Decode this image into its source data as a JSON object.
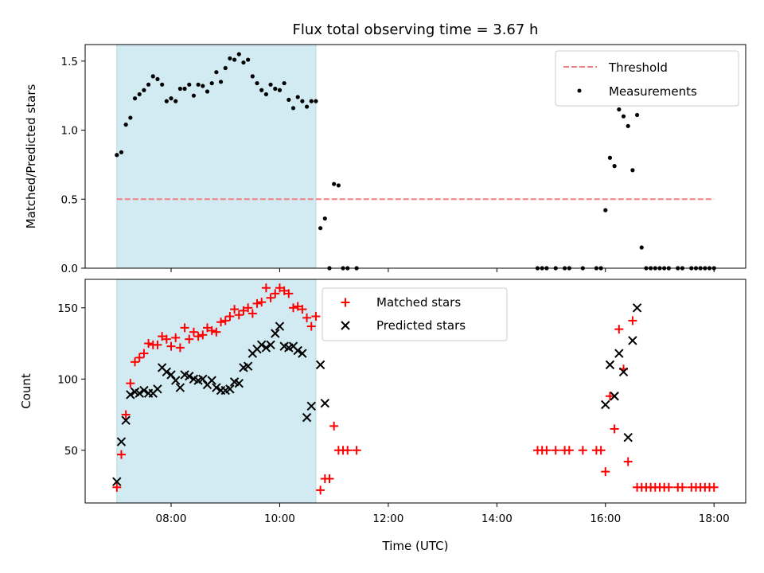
{
  "chart_data": [
    {
      "type": "scatter",
      "title": "Flux total observing time = 3.67 h",
      "xlabel": "",
      "ylabel": "Matched/Predicted stars",
      "ylim": [
        0.0,
        1.62
      ],
      "yticks": [
        "0.0",
        "0.5",
        "1.0",
        "1.5"
      ],
      "ytick_values": [
        0.0,
        0.5,
        1.0,
        1.5
      ],
      "highlight_span": {
        "start": "07:00",
        "end": "10:40",
        "color": "#add8e6"
      },
      "threshold": {
        "name": "Threshold",
        "value": 0.5,
        "x_start": "07:00",
        "x_end": "18:00",
        "color": "#f08080"
      },
      "legend": {
        "position": "top-right",
        "entries": [
          "Threshold",
          "Measurements"
        ]
      },
      "series": [
        {
          "name": "Measurements",
          "color": "#000000",
          "marker": "dot",
          "points": [
            [
              "07:00",
              0.82
            ],
            [
              "07:05",
              0.84
            ],
            [
              "07:10",
              1.04
            ],
            [
              "07:15",
              1.09
            ],
            [
              "07:20",
              1.23
            ],
            [
              "07:25",
              1.26
            ],
            [
              "07:30",
              1.29
            ],
            [
              "07:35",
              1.33
            ],
            [
              "07:40",
              1.39
            ],
            [
              "07:45",
              1.37
            ],
            [
              "07:50",
              1.33
            ],
            [
              "07:55",
              1.21
            ],
            [
              "08:00",
              1.23
            ],
            [
              "08:05",
              1.21
            ],
            [
              "08:10",
              1.3
            ],
            [
              "08:15",
              1.3
            ],
            [
              "08:20",
              1.33
            ],
            [
              "08:25",
              1.25
            ],
            [
              "08:30",
              1.33
            ],
            [
              "08:35",
              1.32
            ],
            [
              "08:40",
              1.28
            ],
            [
              "08:45",
              1.34
            ],
            [
              "08:50",
              1.42
            ],
            [
              "08:55",
              1.35
            ],
            [
              "09:00",
              1.45
            ],
            [
              "09:05",
              1.52
            ],
            [
              "09:10",
              1.51
            ],
            [
              "09:15",
              1.55
            ],
            [
              "09:20",
              1.49
            ],
            [
              "09:25",
              1.51
            ],
            [
              "09:30",
              1.39
            ],
            [
              "09:35",
              1.34
            ],
            [
              "09:40",
              1.29
            ],
            [
              "09:45",
              1.26
            ],
            [
              "09:50",
              1.33
            ],
            [
              "09:55",
              1.3
            ],
            [
              "10:00",
              1.29
            ],
            [
              "10:05",
              1.34
            ],
            [
              "10:10",
              1.22
            ],
            [
              "10:15",
              1.16
            ],
            [
              "10:20",
              1.24
            ],
            [
              "10:25",
              1.21
            ],
            [
              "10:30",
              1.17
            ],
            [
              "10:35",
              1.21
            ],
            [
              "10:40",
              1.21
            ],
            [
              "10:45",
              0.29
            ],
            [
              "10:50",
              0.36
            ],
            [
              "10:55",
              0.0
            ],
            [
              "11:00",
              0.61
            ],
            [
              "11:05",
              0.6
            ],
            [
              "11:10",
              0.0
            ],
            [
              "11:15",
              0.0
            ],
            [
              "11:25",
              0.0
            ],
            [
              "14:45",
              0.0
            ],
            [
              "14:50",
              0.0
            ],
            [
              "14:55",
              0.0
            ],
            [
              "15:05",
              0.0
            ],
            [
              "15:15",
              0.0
            ],
            [
              "15:20",
              0.0
            ],
            [
              "15:35",
              0.0
            ],
            [
              "15:50",
              0.0
            ],
            [
              "15:55",
              0.0
            ],
            [
              "16:00",
              0.42
            ],
            [
              "16:05",
              0.8
            ],
            [
              "16:10",
              0.74
            ],
            [
              "16:15",
              1.15
            ],
            [
              "16:20",
              1.1
            ],
            [
              "16:25",
              1.03
            ],
            [
              "16:30",
              0.71
            ],
            [
              "16:35",
              1.11
            ],
            [
              "16:40",
              0.15
            ],
            [
              "16:45",
              0.0
            ],
            [
              "16:50",
              0.0
            ],
            [
              "16:55",
              0.0
            ],
            [
              "17:00",
              0.0
            ],
            [
              "17:05",
              0.0
            ],
            [
              "17:10",
              0.0
            ],
            [
              "17:20",
              0.0
            ],
            [
              "17:25",
              0.0
            ],
            [
              "17:35",
              0.0
            ],
            [
              "17:40",
              0.0
            ],
            [
              "17:45",
              0.0
            ],
            [
              "17:50",
              0.0
            ],
            [
              "17:55",
              0.0
            ],
            [
              "18:00",
              0.0
            ]
          ]
        }
      ]
    },
    {
      "type": "scatter",
      "title": "",
      "xlabel": "Time (UTC)",
      "ylabel": "Count",
      "ylim": [
        13,
        170
      ],
      "yticks": [
        "50",
        "100",
        "150"
      ],
      "ytick_values": [
        50,
        100,
        150
      ],
      "xlim": [
        "06:25",
        "18:35"
      ],
      "xticks": [
        "08:00",
        "10:00",
        "12:00",
        "14:00",
        "16:00",
        "18:00"
      ],
      "highlight_span": {
        "start": "07:00",
        "end": "10:40",
        "color": "#add8e6"
      },
      "legend": {
        "position": "top-center",
        "entries": [
          "Matched stars",
          "Predicted stars"
        ]
      },
      "series": [
        {
          "name": "Matched stars",
          "color": "#ff0000",
          "marker": "plus",
          "points": [
            [
              "07:00",
              24
            ],
            [
              "07:05",
              47
            ],
            [
              "07:10",
              75
            ],
            [
              "07:15",
              97
            ],
            [
              "07:20",
              112
            ],
            [
              "07:25",
              115
            ],
            [
              "07:30",
              118
            ],
            [
              "07:35",
              125
            ],
            [
              "07:40",
              124
            ],
            [
              "07:45",
              124
            ],
            [
              "07:50",
              130
            ],
            [
              "07:55",
              128
            ],
            [
              "08:00",
              123
            ],
            [
              "08:05",
              129
            ],
            [
              "08:10",
              122
            ],
            [
              "08:15",
              136
            ],
            [
              "08:20",
              128
            ],
            [
              "08:25",
              133
            ],
            [
              "08:30",
              130
            ],
            [
              "08:35",
              131
            ],
            [
              "08:40",
              136
            ],
            [
              "08:45",
              134
            ],
            [
              "08:50",
              133
            ],
            [
              "08:55",
              140
            ],
            [
              "09:00",
              141
            ],
            [
              "09:05",
              144
            ],
            [
              "09:10",
              149
            ],
            [
              "09:15",
              145
            ],
            [
              "09:20",
              148
            ],
            [
              "09:25",
              150
            ],
            [
              "09:30",
              146
            ],
            [
              "09:35",
              153
            ],
            [
              "09:40",
              154
            ],
            [
              "09:45",
              164
            ],
            [
              "09:50",
              157
            ],
            [
              "09:55",
              160
            ],
            [
              "10:00",
              164
            ],
            [
              "10:05",
              162
            ],
            [
              "10:10",
              160
            ],
            [
              "10:15",
              150
            ],
            [
              "10:20",
              151
            ],
            [
              "10:25",
              149
            ],
            [
              "10:30",
              143
            ],
            [
              "10:35",
              137
            ],
            [
              "10:40",
              144
            ],
            [
              "10:45",
              22
            ],
            [
              "10:50",
              30
            ],
            [
              "10:55",
              30
            ],
            [
              "11:00",
              67
            ],
            [
              "11:05",
              50
            ],
            [
              "11:10",
              50
            ],
            [
              "11:15",
              50
            ],
            [
              "11:25",
              50
            ],
            [
              "14:45",
              50
            ],
            [
              "14:50",
              50
            ],
            [
              "14:55",
              50
            ],
            [
              "15:05",
              50
            ],
            [
              "15:15",
              50
            ],
            [
              "15:20",
              50
            ],
            [
              "15:35",
              50
            ],
            [
              "15:50",
              50
            ],
            [
              "15:55",
              50
            ],
            [
              "16:00",
              35
            ],
            [
              "16:05",
              88
            ],
            [
              "16:10",
              65
            ],
            [
              "16:15",
              135
            ],
            [
              "16:20",
              107
            ],
            [
              "16:25",
              42
            ],
            [
              "16:30",
              141
            ],
            [
              "16:35",
              24
            ],
            [
              "16:40",
              24
            ],
            [
              "16:45",
              24
            ],
            [
              "16:50",
              24
            ],
            [
              "16:55",
              24
            ],
            [
              "17:00",
              24
            ],
            [
              "17:05",
              24
            ],
            [
              "17:10",
              24
            ],
            [
              "17:20",
              24
            ],
            [
              "17:25",
              24
            ],
            [
              "17:35",
              24
            ],
            [
              "17:40",
              24
            ],
            [
              "17:45",
              24
            ],
            [
              "17:50",
              24
            ],
            [
              "17:55",
              24
            ],
            [
              "18:00",
              24
            ]
          ]
        },
        {
          "name": "Predicted stars",
          "color": "#000000",
          "marker": "x",
          "points": [
            [
              "07:00",
              28
            ],
            [
              "07:05",
              56
            ],
            [
              "07:10",
              71
            ],
            [
              "07:15",
              89
            ],
            [
              "07:20",
              91
            ],
            [
              "07:25",
              90
            ],
            [
              "07:30",
              92
            ],
            [
              "07:35",
              90
            ],
            [
              "07:40",
              90
            ],
            [
              "07:45",
              93
            ],
            [
              "07:50",
              108
            ],
            [
              "07:55",
              105
            ],
            [
              "08:00",
              103
            ],
            [
              "08:05",
              99
            ],
            [
              "08:10",
              94
            ],
            [
              "08:15",
              103
            ],
            [
              "08:20",
              102
            ],
            [
              "08:25",
              100
            ],
            [
              "08:30",
              99
            ],
            [
              "08:35",
              100
            ],
            [
              "08:40",
              96
            ],
            [
              "08:45",
              99
            ],
            [
              "08:50",
              94
            ],
            [
              "08:55",
              92
            ],
            [
              "09:00",
              92
            ],
            [
              "09:05",
              93
            ],
            [
              "09:10",
              98
            ],
            [
              "09:15",
              97
            ],
            [
              "09:20",
              108
            ],
            [
              "09:25",
              109
            ],
            [
              "09:30",
              118
            ],
            [
              "09:35",
              121
            ],
            [
              "09:40",
              124
            ],
            [
              "09:45",
              122
            ],
            [
              "09:50",
              124
            ],
            [
              "09:55",
              132
            ],
            [
              "10:00",
              137
            ],
            [
              "10:05",
              123
            ],
            [
              "10:10",
              122
            ],
            [
              "10:15",
              123
            ],
            [
              "10:20",
              120
            ],
            [
              "10:25",
              118
            ],
            [
              "10:30",
              73
            ],
            [
              "10:35",
              81
            ],
            [
              "10:45",
              110
            ],
            [
              "10:50",
              83
            ],
            [
              "16:00",
              82
            ],
            [
              "16:05",
              110
            ],
            [
              "16:10",
              88
            ],
            [
              "16:15",
              118
            ],
            [
              "16:20",
              105
            ],
            [
              "16:25",
              59
            ],
            [
              "16:30",
              127
            ],
            [
              "16:35",
              150
            ]
          ]
        }
      ]
    }
  ]
}
